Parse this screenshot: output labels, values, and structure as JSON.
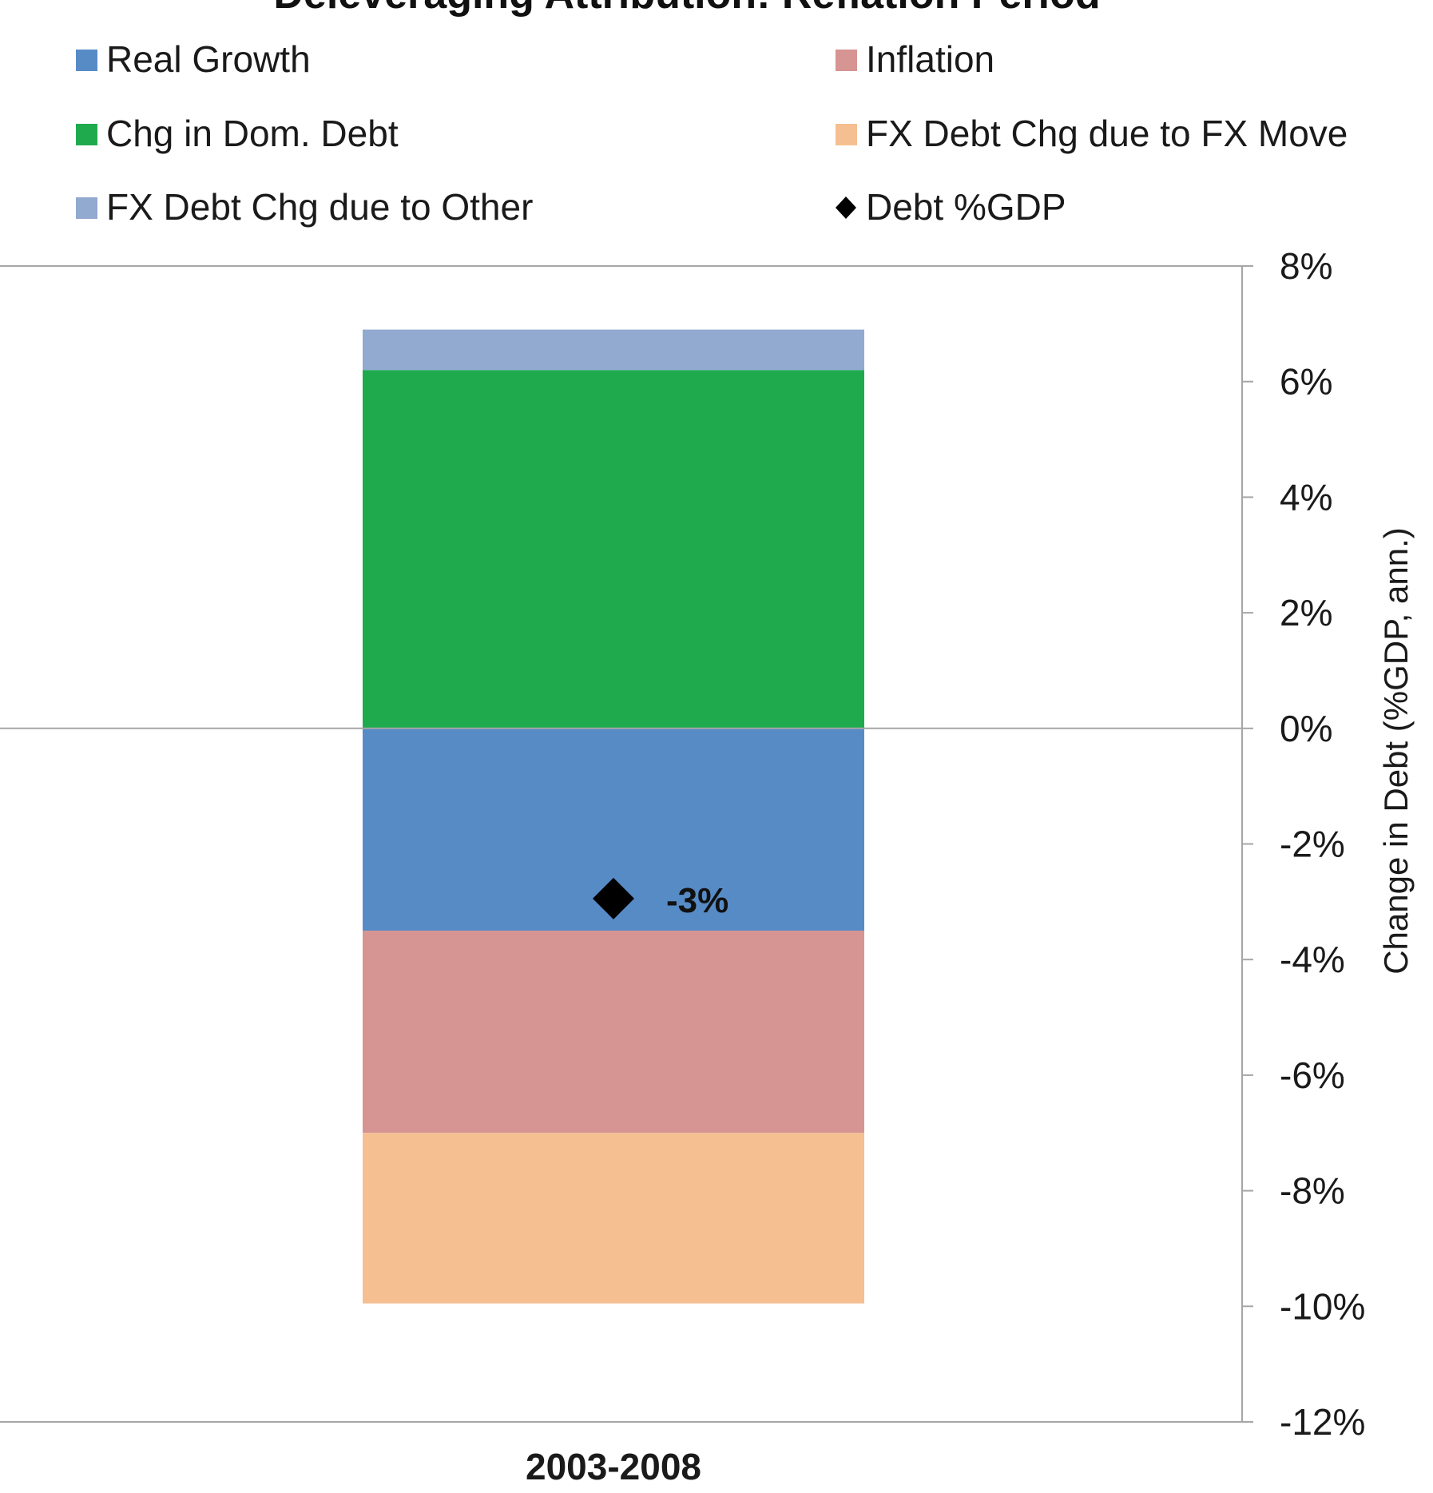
{
  "chart_data": {
    "type": "bar",
    "stacked": true,
    "title": "Deleveraging Attribution: Reflation Period",
    "categories": [
      "2003-2008"
    ],
    "series": [
      {
        "name": "Real Growth",
        "color": "#578bc6",
        "values": [
          -3.5
        ]
      },
      {
        "name": "Inflation",
        "color": "#d69492",
        "values": [
          -3.5
        ]
      },
      {
        "name": "Chg in Dom. Debt",
        "color": "#1fab4d",
        "values": [
          6.2
        ]
      },
      {
        "name": "FX Debt Chg due to FX Move",
        "color": "#f5bf91",
        "values": [
          -2.95
        ]
      },
      {
        "name": "FX Debt Chg due to Other",
        "color": "#92a9d0",
        "values": [
          0.7
        ]
      }
    ],
    "markers": [
      {
        "name": "Debt %GDP",
        "marker": "diamond",
        "color": "#000000",
        "values": [
          -3
        ],
        "data_labels": [
          "-3%"
        ]
      }
    ],
    "legend_position": "top",
    "ylabel": "Change in Debt (%GDP, ann.)",
    "yaxis_side": "right",
    "ylim": [
      -12,
      8
    ],
    "yticks": [
      8,
      6,
      4,
      2,
      0,
      -2,
      -4,
      -6,
      -8,
      -10,
      -12
    ],
    "ytick_labels": [
      "8%",
      "6%",
      "4%",
      "2%",
      "0%",
      "-2%",
      "-4%",
      "-6%",
      "-8%",
      "-10%",
      "-12%"
    ],
    "grid": false
  }
}
